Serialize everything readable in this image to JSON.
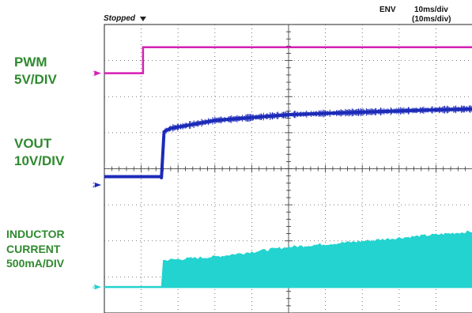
{
  "header": {
    "status": "Stopped",
    "mode": "ENV",
    "timebase": "10ms/div",
    "timebase_secondary": "(10ms/div)"
  },
  "channel_labels": [
    {
      "line1": "PWM",
      "line2": "5V/DIV"
    },
    {
      "line1": "VOUT",
      "line2": "10V/DIV"
    },
    {
      "line1": "INDUCTOR",
      "line2": "CURRENT",
      "line3": "500mA/DIV"
    }
  ],
  "channel_markers": {
    "ch1": "1",
    "ch2": "2",
    "ch4": "4"
  },
  "colors": {
    "pwm": "#d61fb4",
    "vout": "#1c2bb8",
    "current": "#22d3cf",
    "grid": "#555555",
    "labels": "#2f8a2f"
  },
  "chart_data": {
    "type": "line",
    "grid": true,
    "x_divisions": 10,
    "y_divisions": 8,
    "x_unit": "10ms/div",
    "series": [
      {
        "name": "PWM",
        "scale": "5V/DIV",
        "points_div": [
          [
            0,
            6.65
          ],
          [
            1.05,
            6.65
          ],
          [
            1.05,
            7.37
          ],
          [
            10,
            7.37
          ]
        ]
      },
      {
        "name": "VOUT",
        "scale": "10V/DIV",
        "points_div": [
          [
            0,
            3.78
          ],
          [
            1.55,
            3.78
          ],
          [
            1.55,
            3.75
          ],
          [
            1.62,
            5.03
          ],
          [
            1.8,
            5.12
          ],
          [
            3,
            5.34
          ],
          [
            5,
            5.5
          ],
          [
            7,
            5.57
          ],
          [
            8.5,
            5.62
          ],
          [
            10,
            5.66
          ]
        ]
      },
      {
        "name": "INDUCTOR CURRENT",
        "scale": "500mA/DIV",
        "points_div": [
          [
            0,
            0.72
          ],
          [
            1.55,
            0.72
          ],
          [
            1.55,
            1.45
          ],
          [
            3,
            1.55
          ],
          [
            5,
            1.82
          ],
          [
            7,
            1.98
          ],
          [
            8.5,
            2.12
          ],
          [
            10,
            2.25
          ]
        ]
      }
    ]
  }
}
